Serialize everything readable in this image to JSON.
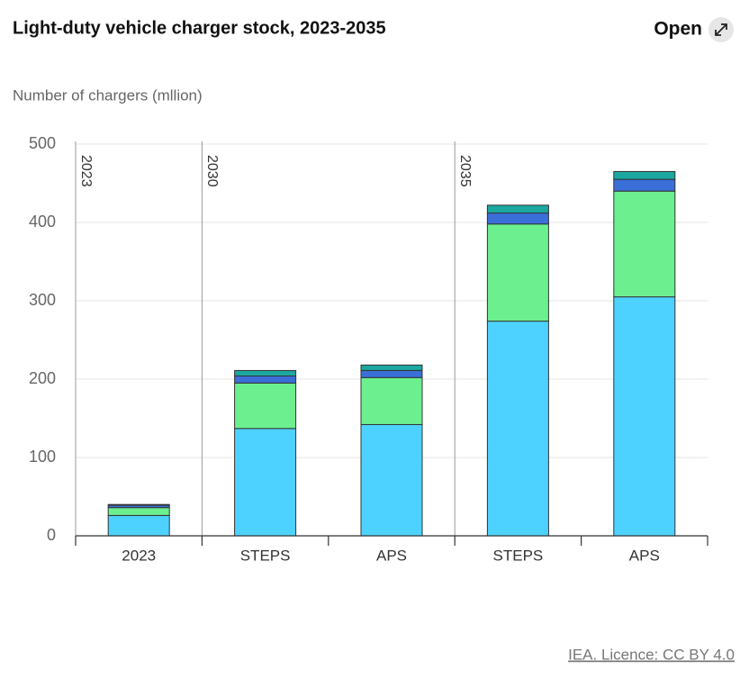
{
  "chart_data": {
    "type": "stacked-bar",
    "title": "Light-duty vehicle charger stock, 2023-2035",
    "open_label": "Open",
    "y_label": "Number of chargers (mllion)",
    "source": "IEA. Licence: CC BY 4.0",
    "groups": [
      {
        "label": "2023",
        "categories": [
          "2023"
        ]
      },
      {
        "label": "2030",
        "categories": [
          "STEPS",
          "APS"
        ]
      },
      {
        "label": "2035",
        "categories": [
          "STEPS",
          "APS"
        ]
      }
    ],
    "series": [
      {
        "color": "#4dd2ff",
        "values": [
          26,
          137,
          142,
          274,
          305
        ]
      },
      {
        "color": "#6cf08f",
        "values": [
          10,
          58,
          60,
          124,
          135
        ]
      },
      {
        "color": "#3a6fd8",
        "values": [
          3,
          9,
          9,
          14,
          15
        ]
      },
      {
        "color": "#1aa8a0",
        "values": [
          1,
          7,
          7,
          10,
          10
        ]
      }
    ],
    "ylim": [
      0,
      500
    ],
    "yticks": [
      0,
      100,
      200,
      300,
      400,
      500
    ],
    "grid": true
  }
}
